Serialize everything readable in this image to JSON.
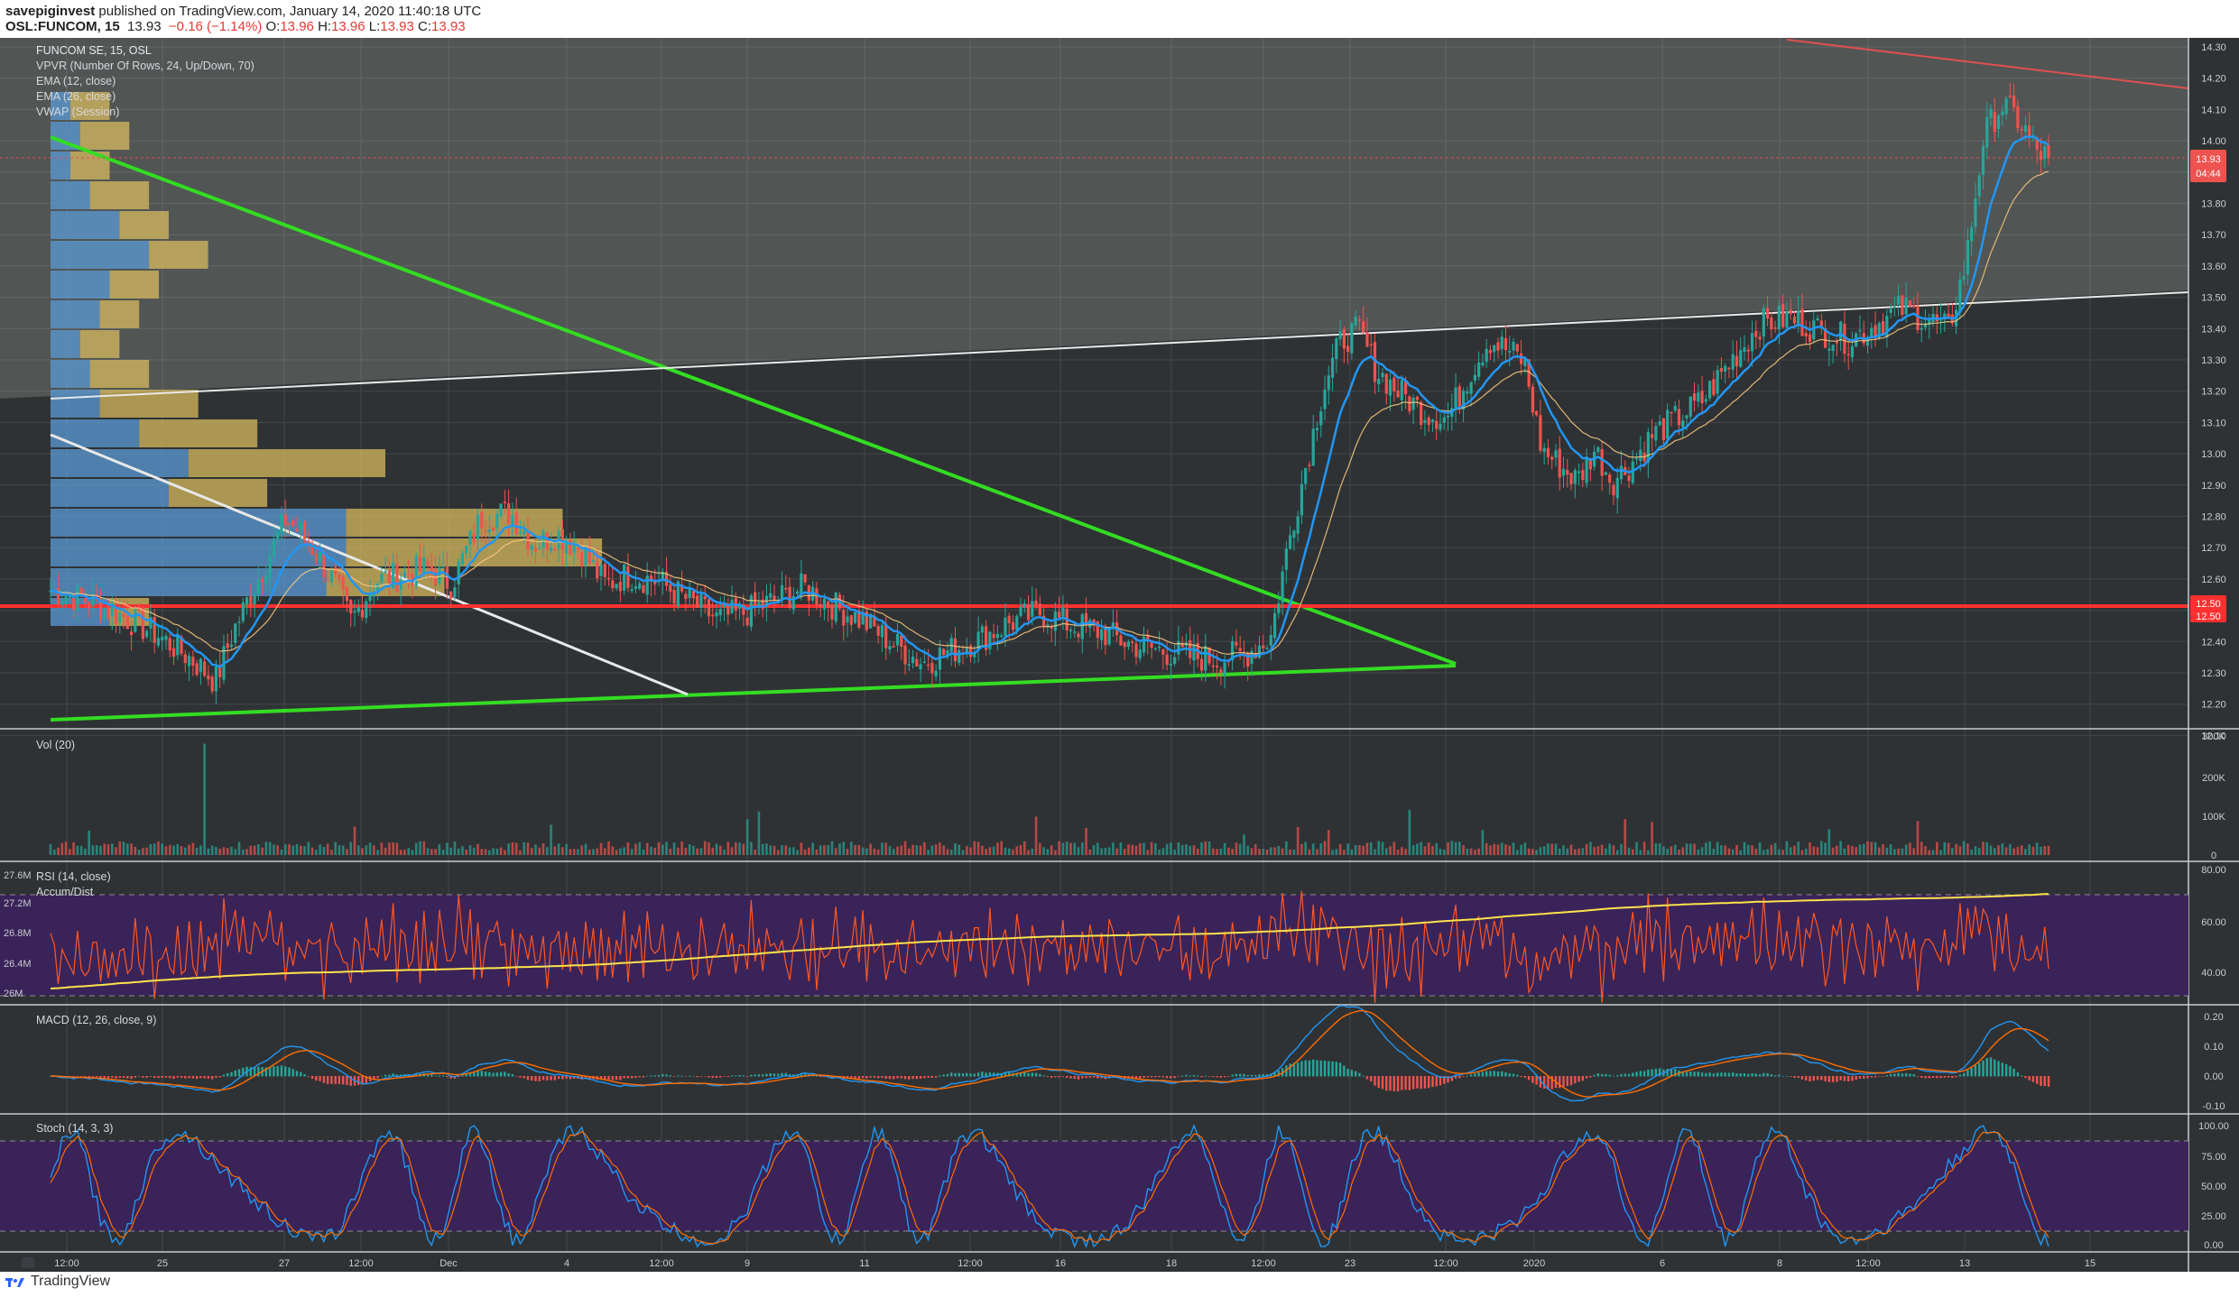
{
  "header": {
    "publisher_name": "savepiginvest",
    "publisher_text": " published on TradingView.com, January 14, 2020 11:40:18 UTC",
    "symbol": "OSL:FUNCOM, 15",
    "last": "13.93",
    "change": "−0.16 (−1.14%)",
    "o_label": "O:",
    "o": "13.96",
    "h_label": "H:",
    "h": "13.96",
    "l_label": "L:",
    "l": "13.93",
    "c_label": "C:",
    "c": "13.93"
  },
  "legend": {
    "title": "FUNCOM SE, 15, OSL",
    "vpvr": "VPVR (Number Of Rows, 24, Up/Down, 70)",
    "ema12": "EMA (12, close)",
    "ema26": "EMA (26, close)",
    "vwap": "VWAP (Session)"
  },
  "panes": {
    "vol": "Vol (20)",
    "rsi": "RSI (14, close)",
    "accum": "Accum/Dist",
    "macd": "MACD (12, 26, close, 9)",
    "stoch": "Stoch (14, 3, 3)"
  },
  "price_tags": {
    "last": "13.93",
    "countdown": "04:44",
    "level_a": "12.50",
    "level_b": "12.50"
  },
  "footer": {
    "brand": "TradingView"
  },
  "colors": {
    "background": "#2f3234",
    "rsi_band": "#3a2358",
    "stoch_band": "#3a2358",
    "up": "#26a69a",
    "down": "#ef5350",
    "ema12": "#2196f3",
    "support_line": "#ff3030",
    "triangle": "#33dd22"
  },
  "chart_data": [
    {
      "type": "candlestick",
      "title": "FUNCOM SE, 15, OSL",
      "price_axis": [
        "14.30",
        "14.20",
        "14.10",
        "14.00",
        "13.90",
        "13.80",
        "13.70",
        "13.60",
        "13.50",
        "13.40",
        "13.30",
        "13.20",
        "13.10",
        "13.00",
        "12.90",
        "12.80",
        "12.70",
        "12.60",
        "12.50",
        "12.40",
        "12.30",
        "12.20",
        "12.10"
      ],
      "x_ticks": [
        "12:00",
        "25",
        "27",
        "12:00",
        "Dec",
        "4",
        "12:00",
        "9",
        "11",
        "12:00",
        "16",
        "18",
        "12:00",
        "23",
        "12:00",
        "2020",
        "6",
        "8",
        "12:00",
        "13",
        "15"
      ],
      "ylim": [
        12.1,
        14.3
      ],
      "close_path": [
        [
          0,
          12.55
        ],
        [
          12,
          12.52
        ],
        [
          24,
          12.47
        ],
        [
          36,
          12.41
        ],
        [
          48,
          12.33
        ],
        [
          56,
          12.26
        ],
        [
          62,
          12.42
        ],
        [
          70,
          12.58
        ],
        [
          80,
          12.78
        ],
        [
          88,
          12.7
        ],
        [
          96,
          12.58
        ],
        [
          102,
          12.45
        ],
        [
          110,
          12.58
        ],
        [
          120,
          12.6
        ],
        [
          128,
          12.62
        ],
        [
          136,
          12.57
        ],
        [
          146,
          12.78
        ],
        [
          156,
          12.8
        ],
        [
          164,
          12.7
        ],
        [
          172,
          12.73
        ],
        [
          180,
          12.68
        ],
        [
          188,
          12.57
        ],
        [
          196,
          12.6
        ],
        [
          206,
          12.58
        ],
        [
          216,
          12.52
        ],
        [
          226,
          12.46
        ],
        [
          236,
          12.48
        ],
        [
          246,
          12.52
        ],
        [
          256,
          12.56
        ],
        [
          266,
          12.5
        ],
        [
          276,
          12.45
        ],
        [
          286,
          12.38
        ],
        [
          296,
          12.32
        ],
        [
          306,
          12.36
        ],
        [
          316,
          12.4
        ],
        [
          326,
          12.45
        ],
        [
          336,
          12.48
        ],
        [
          346,
          12.44
        ],
        [
          356,
          12.42
        ],
        [
          366,
          12.38
        ],
        [
          376,
          12.36
        ],
        [
          386,
          12.34
        ],
        [
          396,
          12.33
        ],
        [
          406,
          12.35
        ],
        [
          414,
          12.4
        ],
        [
          420,
          12.7
        ],
        [
          426,
          12.95
        ],
        [
          432,
          13.2
        ],
        [
          438,
          13.35
        ],
        [
          444,
          13.38
        ],
        [
          450,
          13.25
        ],
        [
          458,
          13.18
        ],
        [
          466,
          13.12
        ],
        [
          474,
          13.1
        ],
        [
          482,
          13.25
        ],
        [
          488,
          13.35
        ],
        [
          494,
          13.32
        ],
        [
          500,
          13.28
        ],
        [
          506,
          13.0
        ],
        [
          512,
          12.95
        ],
        [
          518,
          12.9
        ],
        [
          524,
          13.0
        ],
        [
          530,
          12.9
        ],
        [
          536,
          12.95
        ],
        [
          544,
          13.05
        ],
        [
          552,
          13.1
        ],
        [
          560,
          13.15
        ],
        [
          570,
          13.28
        ],
        [
          580,
          13.4
        ],
        [
          590,
          13.42
        ],
        [
          600,
          13.38
        ],
        [
          610,
          13.35
        ],
        [
          620,
          13.4
        ],
        [
          628,
          13.45
        ],
        [
          636,
          13.42
        ],
        [
          644,
          13.38
        ],
        [
          650,
          13.6
        ],
        [
          656,
          14.0
        ],
        [
          662,
          14.1
        ],
        [
          668,
          14.05
        ],
        [
          674,
          13.95
        ],
        [
          678,
          13.93
        ]
      ],
      "horizontal_levels": [
        {
          "price": 12.5,
          "label": "12.50"
        }
      ],
      "last_price": 13.93
    },
    {
      "type": "bar",
      "title": "Vol (20)",
      "y_ticks": [
        "300K",
        "200K",
        "100K",
        "0"
      ],
      "ylim": [
        0,
        300000
      ]
    },
    {
      "type": "line",
      "title": "RSI (14, close)",
      "y_ticks": [
        "80.00",
        "60.00",
        "40.00"
      ],
      "left_ticks": [
        "27.6M",
        "27.2M",
        "26.8M",
        "26.4M",
        "26M"
      ],
      "bands": [
        30,
        70
      ],
      "series": [
        {
          "name": "Accum/Dist"
        }
      ]
    },
    {
      "type": "line",
      "title": "MACD (12, 26, close, 9)",
      "y_ticks": [
        "0.20",
        "0.10",
        "0.00",
        "-0.10"
      ]
    },
    {
      "type": "line",
      "title": "Stoch (14, 3, 3)",
      "y_ticks": [
        "100.00",
        "75.00",
        "50.00",
        "25.00",
        "0.00"
      ],
      "bands": [
        20,
        80
      ]
    }
  ]
}
